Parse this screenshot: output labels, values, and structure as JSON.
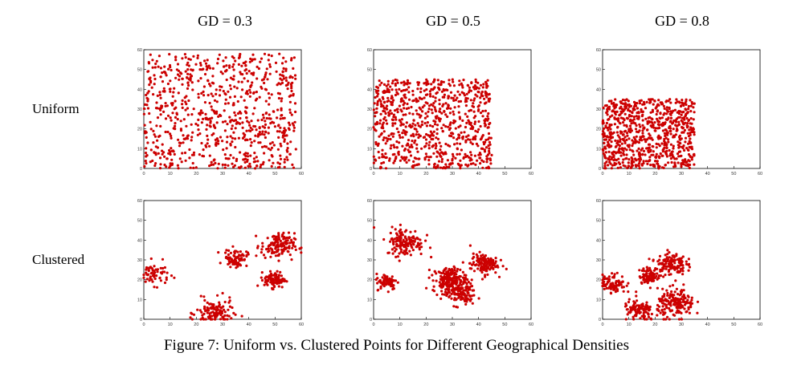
{
  "figure": {
    "caption": "Figure 7: Uniform vs. Clustered Points for Different Geographical Densities",
    "columns": [
      "GD = 0.3",
      "GD = 0.5",
      "GD = 0.8"
    ],
    "rows": [
      "Uniform",
      "Clustered"
    ]
  },
  "style": {
    "point_color": "#cc0000",
    "axis_color": "#000000",
    "tick_label_color": "#333333"
  },
  "chart_data": [
    {
      "type": "scatter",
      "row": "Uniform",
      "column": "GD = 0.3",
      "xlim": [
        0,
        60
      ],
      "ylim": [
        0,
        60
      ],
      "xticks": [
        0,
        10,
        20,
        30,
        40,
        50,
        60
      ],
      "yticks": [
        0,
        10,
        20,
        30,
        40,
        50,
        60
      ],
      "points_approx": 800,
      "distribution": "uniform",
      "x_range": [
        0,
        58
      ],
      "y_range": [
        0,
        58
      ]
    },
    {
      "type": "scatter",
      "row": "Uniform",
      "column": "GD = 0.5",
      "xlim": [
        0,
        60
      ],
      "ylim": [
        0,
        60
      ],
      "xticks": [
        0,
        10,
        20,
        30,
        40,
        50,
        60
      ],
      "yticks": [
        0,
        10,
        20,
        30,
        40,
        50,
        60
      ],
      "points_approx": 800,
      "distribution": "uniform",
      "x_range": [
        0,
        45
      ],
      "y_range": [
        0,
        45
      ]
    },
    {
      "type": "scatter",
      "row": "Uniform",
      "column": "GD = 0.8",
      "xlim": [
        0,
        60
      ],
      "ylim": [
        0,
        60
      ],
      "xticks": [
        0,
        10,
        20,
        30,
        40,
        50,
        60
      ],
      "yticks": [
        0,
        10,
        20,
        30,
        40,
        50,
        60
      ],
      "points_approx": 800,
      "distribution": "uniform",
      "x_range": [
        0,
        35
      ],
      "y_range": [
        0,
        35
      ]
    },
    {
      "type": "scatter",
      "row": "Clustered",
      "column": "GD = 0.3",
      "xlim": [
        0,
        60
      ],
      "ylim": [
        0,
        60
      ],
      "xticks": [
        0,
        10,
        20,
        30,
        40,
        50,
        60
      ],
      "yticks": [
        0,
        10,
        20,
        30,
        40,
        50,
        60
      ],
      "distribution": "clustered",
      "clusters": [
        {
          "center": [
            4,
            23
          ],
          "spread": 2.8,
          "count": 60
        },
        {
          "center": [
            27,
            3
          ],
          "spread": 3.5,
          "count": 120
        },
        {
          "center": [
            35,
            31
          ],
          "spread": 2.2,
          "count": 80
        },
        {
          "center": [
            51,
            37
          ],
          "spread": 3.2,
          "count": 140
        },
        {
          "center": [
            50,
            20
          ],
          "spread": 2.0,
          "count": 100
        }
      ]
    },
    {
      "type": "scatter",
      "row": "Clustered",
      "column": "GD = 0.5",
      "xlim": [
        0,
        60
      ],
      "ylim": [
        0,
        60
      ],
      "xticks": [
        0,
        10,
        20,
        30,
        40,
        50,
        60
      ],
      "yticks": [
        0,
        10,
        20,
        30,
        40,
        50,
        60
      ],
      "distribution": "clustered",
      "clusters": [
        {
          "center": [
            5,
            19
          ],
          "spread": 2.0,
          "count": 80
        },
        {
          "center": [
            12,
            39
          ],
          "spread": 3.5,
          "count": 140
        },
        {
          "center": [
            29,
            20
          ],
          "spread": 3.2,
          "count": 180
        },
        {
          "center": [
            42,
            28
          ],
          "spread": 2.6,
          "count": 130
        },
        {
          "center": [
            33,
            13
          ],
          "spread": 3.0,
          "count": 120
        }
      ]
    },
    {
      "type": "scatter",
      "row": "Clustered",
      "column": "GD = 0.8",
      "xlim": [
        0,
        60
      ],
      "ylim": [
        0,
        60
      ],
      "xticks": [
        0,
        10,
        20,
        30,
        40,
        50,
        60
      ],
      "yticks": [
        0,
        10,
        20,
        30,
        40,
        50,
        60
      ],
      "distribution": "clustered",
      "clusters": [
        {
          "center": [
            4,
            18
          ],
          "spread": 2.4,
          "count": 90
        },
        {
          "center": [
            18,
            22
          ],
          "spread": 2.0,
          "count": 90
        },
        {
          "center": [
            26,
            28
          ],
          "spread": 2.8,
          "count": 130
        },
        {
          "center": [
            28,
            8
          ],
          "spread": 3.5,
          "count": 180
        },
        {
          "center": [
            14,
            4
          ],
          "spread": 3.0,
          "count": 100
        }
      ]
    }
  ]
}
